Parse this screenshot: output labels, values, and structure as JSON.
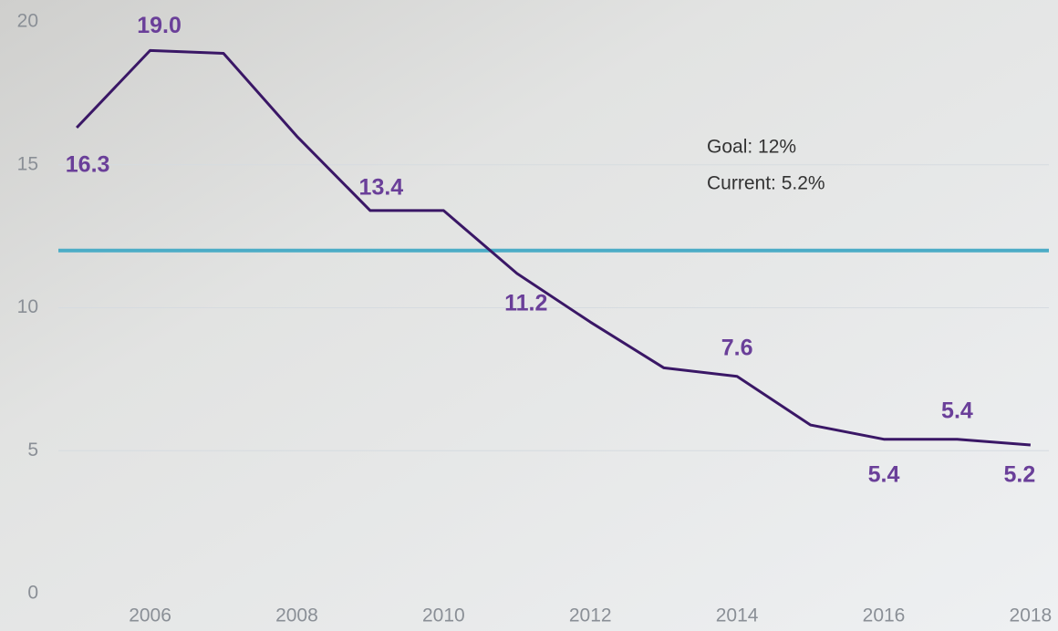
{
  "chart_data": {
    "type": "line",
    "x": [
      2005,
      2006,
      2007,
      2008,
      2009,
      2010,
      2011,
      2012,
      2013,
      2014,
      2015,
      2016,
      2017,
      2018
    ],
    "series": [
      {
        "color": "#3a1766",
        "values": [
          16.3,
          19.0,
          18.9,
          16.0,
          13.4,
          13.4,
          11.2,
          9.5,
          7.9,
          7.6,
          5.9,
          5.4,
          5.4,
          5.2
        ],
        "value_labels": [
          "16.3",
          "19.0",
          null,
          null,
          "13.4",
          null,
          "11.2",
          null,
          null,
          "7.6",
          null,
          "5.4",
          "5.4",
          "5.2"
        ]
      }
    ],
    "label_color": "#6a3f99",
    "reference_line": {
      "value": 12,
      "color": "#4bacc6"
    },
    "annotations": [
      "Goal: 12%",
      "Current: 5.2%"
    ],
    "xlim": [
      2004.75,
      2018.25
    ],
    "xticks": [
      2006,
      2008,
      2010,
      2012,
      2014,
      2016,
      2018
    ],
    "ylim": [
      0,
      20
    ],
    "yticks": [
      0,
      5,
      10,
      15,
      20
    ],
    "grid": true
  }
}
